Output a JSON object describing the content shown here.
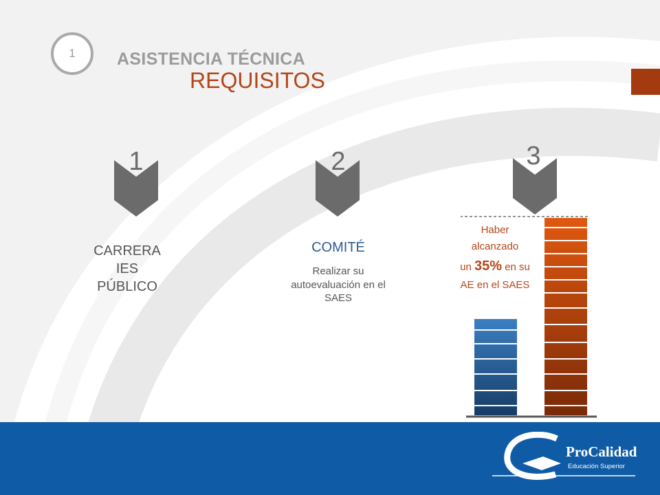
{
  "header": {
    "slide_number": "1",
    "title": "ASISTENCIA TÉCNICA",
    "subtitle": "REQUISITOS"
  },
  "steps": [
    {
      "number": "1",
      "lines": [
        "CARRERA",
        "IES",
        "PÚBLICO"
      ]
    },
    {
      "number": "2",
      "heading": "COMITÉ",
      "lines": [
        "Realizar su",
        "autoevaluación en el",
        "SAES"
      ]
    },
    {
      "number": "3",
      "line1": "Haber",
      "line2": "alcanzado",
      "prefix": "un ",
      "percent": "35%",
      "suffix": " en su",
      "line4": "AE en el SAES"
    }
  ],
  "logo": {
    "name": "ProCalidad",
    "tagline": "Educación Superior"
  },
  "colors": {
    "accent_orange": "#b44518",
    "brand_blue": "#0f5ba6",
    "chevron_gray": "#6b6b6b"
  }
}
